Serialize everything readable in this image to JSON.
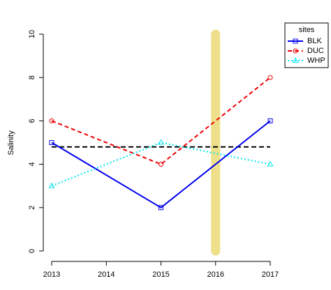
{
  "chart_data": {
    "type": "line",
    "y_label": "Salinity",
    "x": [
      2013,
      2015,
      2017
    ],
    "xlim": [
      2013,
      2017
    ],
    "xticks": [
      2013,
      2014,
      2015,
      2016,
      2017
    ],
    "ylim": [
      0,
      10
    ],
    "yticks": [
      0,
      2,
      4,
      6,
      8,
      10
    ],
    "hline": 4.8,
    "hline_color": "#000000",
    "vline": 2016,
    "vline_color": "#eee08a",
    "legend_title": "sites",
    "legend": "top-right",
    "series": [
      {
        "name": "BLK",
        "color": "#0000ee",
        "linestyle": "solid",
        "marker": "square",
        "values": [
          5,
          2,
          6
        ]
      },
      {
        "name": "DUC",
        "color": "#ee0000",
        "linestyle": "dashed",
        "marker": "circle",
        "values": [
          6,
          4,
          8
        ]
      },
      {
        "name": "WHP",
        "color": "#00e5ee",
        "linestyle": "dotted",
        "marker": "triangle",
        "values": [
          3,
          5,
          4
        ]
      }
    ]
  }
}
